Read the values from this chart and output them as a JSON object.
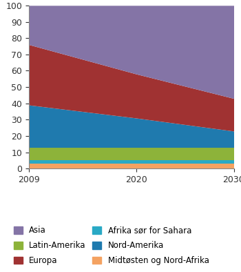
{
  "years": [
    2009,
    2020,
    2030
  ],
  "series": [
    {
      "label": "Midtøsten og Nord-Afrika",
      "values": [
        3,
        3,
        3
      ],
      "color": "#F4A261"
    },
    {
      "label": "Afrika sør for Sahara",
      "values": [
        2,
        2,
        2
      ],
      "color": "#29A9C5"
    },
    {
      "label": "Latin-Amerika",
      "values": [
        8,
        8,
        8
      ],
      "color": "#8DB33A"
    },
    {
      "label": "Nord-Amerika",
      "values": [
        26,
        18,
        10
      ],
      "color": "#1F7AAE"
    },
    {
      "label": "Europa",
      "values": [
        37,
        27,
        20
      ],
      "color": "#A03232"
    },
    {
      "label": "Asia",
      "values": [
        24,
        42,
        57
      ],
      "color": "#8474A6"
    }
  ],
  "legend_cols_order": [
    [
      "Asia",
      "Europa",
      "Nord-Amerika"
    ],
    [
      "Latin-Amerika",
      "Afrika sør for Sahara",
      "Midtøsten og Nord-Afrika"
    ]
  ],
  "xlim": [
    2009,
    2030
  ],
  "ylim": [
    0,
    100
  ],
  "yticks": [
    0,
    10,
    20,
    30,
    40,
    50,
    60,
    70,
    80,
    90,
    100
  ],
  "xticks": [
    2009,
    2020,
    2030
  ],
  "background_color": "#ffffff",
  "legend_fontsize": 8.5
}
